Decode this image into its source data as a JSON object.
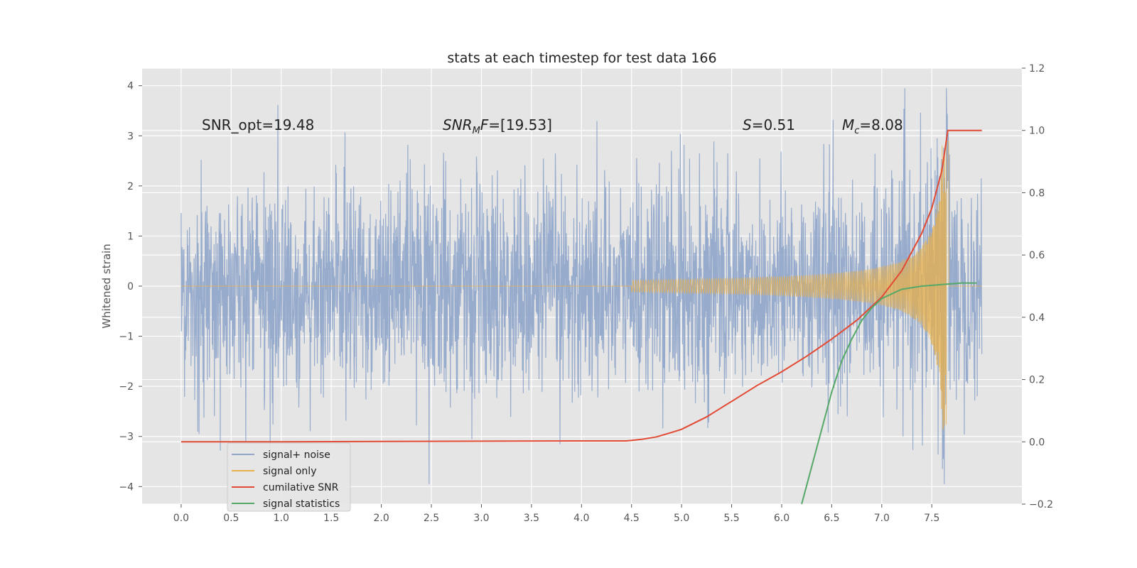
{
  "chart_data": {
    "type": "line",
    "title": "stats at each timestep for test data 166",
    "ylabel": "Whitened strain",
    "xlabel": "",
    "xlim": [
      -0.39,
      8.4
    ],
    "ylim": [
      -4.35,
      4.35
    ],
    "y2lim": [
      -0.2,
      1.2
    ],
    "xticks": [
      "0.0",
      "0.5",
      "1.0",
      "1.5",
      "2.0",
      "2.5",
      "3.0",
      "3.5",
      "4.0",
      "4.5",
      "5.0",
      "5.5",
      "6.0",
      "6.5",
      "7.0",
      "7.5"
    ],
    "yticks": [
      "4",
      "3",
      "2",
      "1",
      "0",
      "−1",
      "−2",
      "−3",
      "−4"
    ],
    "y2ticks": [
      "1.2",
      "1.0",
      "0.8",
      "0.6",
      "0.4",
      "0.2",
      "0.0",
      "−0.2"
    ],
    "grid": true,
    "legend_position": "lower-left",
    "annotations": [
      {
        "text": "SNR_opt=19.48",
        "x": 0.2,
        "y": 3.2
      },
      {
        "text": "SNR_MF=[19.53]",
        "x": 2.6,
        "y": 3.2
      },
      {
        "text": "S=0.51",
        "x": 5.6,
        "y": 3.2
      },
      {
        "text": "M_c=8.08",
        "x": 6.6,
        "y": 3.2
      }
    ],
    "series": [
      {
        "name": "signal+ noise",
        "color": "#92a8cb",
        "axis": "left",
        "x_range": [
          0,
          8
        ],
        "noise_std": 1.0,
        "approx_max": 4.0,
        "approx_min": -4.0
      },
      {
        "name": "signal only",
        "color": "#e8b04a",
        "axis": "left",
        "chirp_onset_x": 4.5,
        "merger_x": 7.65,
        "peak_amplitude": 2.9,
        "end_x": 8.0
      },
      {
        "name": "cumilative SNR",
        "color": "#e24a33",
        "axis": "right",
        "x": [
          0,
          1,
          2,
          3,
          4,
          4.45,
          4.6,
          4.75,
          4.9,
          5.0,
          5.25,
          5.5,
          5.75,
          6.0,
          6.25,
          6.5,
          6.75,
          7.0,
          7.2,
          7.4,
          7.5,
          7.6,
          7.66,
          7.7,
          8.0
        ],
        "values": [
          0.0,
          0.0,
          0.001,
          0.002,
          0.003,
          0.003,
          0.008,
          0.016,
          0.03,
          0.04,
          0.08,
          0.13,
          0.18,
          0.225,
          0.275,
          0.33,
          0.39,
          0.465,
          0.55,
          0.67,
          0.75,
          0.87,
          1.0,
          1.0,
          1.0
        ]
      },
      {
        "name": "signal statistics",
        "color": "#55a868",
        "axis": "right",
        "x": [
          6.2,
          6.3,
          6.4,
          6.5,
          6.6,
          6.7,
          6.8,
          6.9,
          7.0,
          7.2,
          7.4,
          7.6,
          7.8,
          7.95
        ],
        "values": [
          -0.2,
          -0.08,
          0.04,
          0.16,
          0.26,
          0.33,
          0.39,
          0.43,
          0.46,
          0.49,
          0.5,
          0.505,
          0.51,
          0.51
        ]
      }
    ]
  }
}
